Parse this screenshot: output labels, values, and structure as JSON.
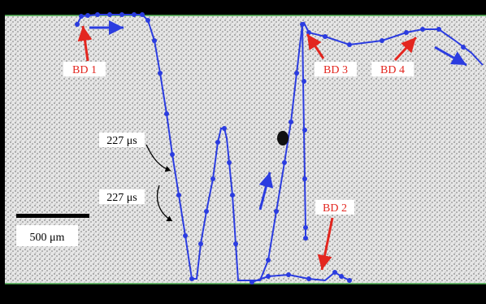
{
  "labels": {
    "bd1": "BD 1",
    "bd2": "BD 2",
    "bd3": "BD 3",
    "bd4": "BD 4",
    "time1": "227 μs",
    "time2": "227 μs",
    "scale": "500 μm"
  },
  "colors": {
    "track": "#2b3ce0",
    "annotation": "#e3261f",
    "background_noise": "#d9d9d9",
    "edge_top": "#4caf50",
    "edge_bottom": "#4caf50"
  }
}
